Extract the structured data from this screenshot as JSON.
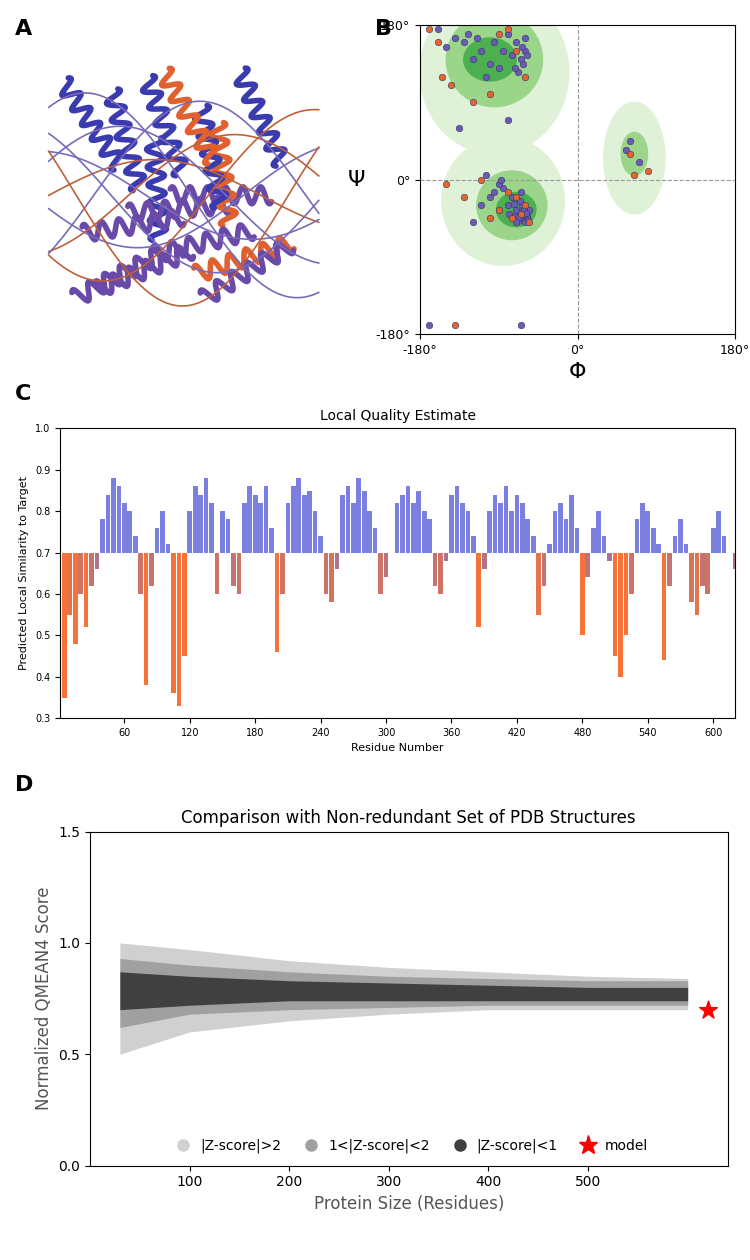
{
  "chart_data": [
    {
      "type": "image",
      "panel": "A"
    },
    {
      "type": "scatter",
      "panel": "B",
      "xlabel": "Φ",
      "ylabel": "Ψ",
      "xlim": [
        -180,
        180
      ],
      "ylim": [
        -180,
        180
      ],
      "xticks": [
        {
          "value": -180,
          "label": "-180°"
        },
        {
          "value": 0,
          "label": "0°"
        },
        {
          "value": 180,
          "label": "180°"
        }
      ],
      "yticks": [
        {
          "value": -180,
          "label": "-180°"
        },
        {
          "value": 0,
          "label": "0°"
        },
        {
          "value": 180,
          "label": "180°"
        }
      ],
      "series": [
        {
          "color": "#6b5bb5",
          "marker": "circle",
          "x": [
            -60,
            -65,
            -70,
            -62,
            -75,
            -80,
            -90,
            -100,
            -110,
            -120,
            -130,
            -140,
            -150,
            -68,
            -58,
            -72,
            -85,
            -95,
            -105,
            -115,
            -64,
            -60,
            -125,
            -160,
            -60,
            -62,
            -65,
            -58,
            -70,
            -68,
            -55,
            -72,
            -63,
            -66,
            -75,
            -80,
            -85,
            -90,
            -95,
            -100,
            -60,
            -57,
            -64,
            -67,
            -61,
            -59,
            -70,
            -78,
            -88,
            -110,
            -120,
            -105,
            -65,
            -73,
            -170,
            -65,
            60,
            70,
            55,
            -135,
            -80
          ],
          "y": [
            150,
            140,
            160,
            135,
            145,
            170,
            130,
            135,
            150,
            140,
            160,
            165,
            155,
            125,
            145,
            130,
            150,
            160,
            120,
            165,
            155,
            165,
            170,
            175,
            -40,
            -45,
            -38,
            -42,
            -35,
            -48,
            -35,
            -42,
            -30,
            -25,
            -20,
            -30,
            -10,
            -5,
            -15,
            -20,
            -50,
            -47,
            -41,
            -44,
            -36,
            -39,
            -50,
            -40,
            0,
            -30,
            -50,
            5,
            -15,
            -28,
            -170,
            -170,
            45,
            20,
            35,
            60,
            70
          ]
        },
        {
          "color": "#e8642a",
          "marker": "circle",
          "x": [
            -160,
            -155,
            -145,
            -90,
            -70,
            -60,
            -100,
            -120,
            -65,
            -60,
            -70,
            -75,
            -80,
            -90,
            -100,
            -55,
            -110,
            -130,
            80,
            60,
            65,
            -150,
            -140,
            -80,
            -170
          ],
          "y": [
            160,
            120,
            110,
            170,
            150,
            120,
            100,
            90,
            -40,
            -30,
            -20,
            -45,
            -15,
            -35,
            -45,
            -50,
            0,
            -20,
            10,
            30,
            5,
            -5,
            -170,
            175,
            175
          ]
        }
      ]
    },
    {
      "type": "bar",
      "panel": "C",
      "title": "Local Quality Estimate",
      "xlabel": "Residue Number",
      "ylabel": "Predicted Local Similarity to Target",
      "xlim": [
        1,
        620
      ],
      "ylim": [
        0.3,
        1.0
      ],
      "xticks": [
        60,
        120,
        180,
        240,
        300,
        360,
        420,
        480,
        540,
        600
      ],
      "yticks": [
        {
          "value": 0.3,
          "label": "0.3"
        },
        {
          "value": 0.4,
          "label": "0.4"
        },
        {
          "value": 0.5,
          "label": "0.5"
        },
        {
          "value": 0.6,
          "label": "0.6"
        },
        {
          "value": 0.7,
          "label": "0.7"
        },
        {
          "value": 0.8,
          "label": "0.8"
        },
        {
          "value": 0.9,
          "label": "0.9"
        },
        {
          "value": 1.0,
          "label": "1.0"
        }
      ],
      "baseline": 0.7,
      "x": [
        5,
        10,
        15,
        20,
        25,
        30,
        35,
        40,
        45,
        50,
        55,
        60,
        65,
        70,
        75,
        80,
        85,
        90,
        95,
        100,
        105,
        110,
        115,
        120,
        125,
        130,
        135,
        140,
        145,
        150,
        155,
        160,
        165,
        170,
        175,
        180,
        185,
        190,
        195,
        200,
        205,
        210,
        215,
        220,
        225,
        230,
        235,
        240,
        245,
        250,
        255,
        260,
        265,
        270,
        275,
        280,
        285,
        290,
        295,
        300,
        305,
        310,
        315,
        320,
        325,
        330,
        335,
        340,
        345,
        350,
        355,
        360,
        365,
        370,
        375,
        380,
        385,
        390,
        395,
        400,
        405,
        410,
        415,
        420,
        425,
        430,
        435,
        440,
        445,
        450,
        455,
        460,
        465,
        470,
        475,
        480,
        485,
        490,
        495,
        500,
        505,
        510,
        515,
        520,
        525,
        530,
        535,
        540,
        545,
        550,
        555,
        560,
        565,
        570,
        575,
        580,
        585,
        590,
        595,
        600,
        605,
        610,
        615,
        620
      ],
      "values": [
        0.35,
        0.55,
        0.48,
        0.6,
        0.52,
        0.62,
        0.66,
        0.78,
        0.84,
        0.88,
        0.86,
        0.82,
        0.8,
        0.74,
        0.6,
        0.38,
        0.62,
        0.76,
        0.8,
        0.72,
        0.36,
        0.33,
        0.45,
        0.8,
        0.86,
        0.84,
        0.88,
        0.82,
        0.6,
        0.8,
        0.78,
        0.62,
        0.6,
        0.82,
        0.86,
        0.84,
        0.82,
        0.86,
        0.76,
        0.46,
        0.6,
        0.82,
        0.86,
        0.88,
        0.84,
        0.85,
        0.8,
        0.74,
        0.6,
        0.58,
        0.66,
        0.84,
        0.86,
        0.82,
        0.88,
        0.85,
        0.8,
        0.76,
        0.6,
        0.64,
        0.7,
        0.82,
        0.84,
        0.86,
        0.82,
        0.85,
        0.8,
        0.78,
        0.62,
        0.6,
        0.68,
        0.84,
        0.86,
        0.82,
        0.8,
        0.74,
        0.52,
        0.66,
        0.8,
        0.84,
        0.82,
        0.86,
        0.8,
        0.84,
        0.82,
        0.78,
        0.74,
        0.55,
        0.62,
        0.72,
        0.8,
        0.82,
        0.78,
        0.84,
        0.76,
        0.5,
        0.64,
        0.76,
        0.8,
        0.74,
        0.68,
        0.45,
        0.4,
        0.5,
        0.6,
        0.78,
        0.82,
        0.8,
        0.76,
        0.72,
        0.44,
        0.62,
        0.74,
        0.78,
        0.72,
        0.58,
        0.55,
        0.62,
        0.6,
        0.76,
        0.8,
        0.74,
        0.7,
        0.66
      ]
    },
    {
      "type": "band_scatter",
      "panel": "D",
      "title": "Comparison with Non-redundant Set of PDB Structures",
      "xlabel": "Protein Size (Residues)",
      "ylabel": "Normalized QMEAN4 Score",
      "xlim": [
        0,
        640
      ],
      "ylim": [
        0.0,
        1.5
      ],
      "xticks": [
        100,
        200,
        300,
        400,
        500
      ],
      "yticks": [
        {
          "value": 0.0,
          "label": "0.0"
        },
        {
          "value": 0.5,
          "label": "0.5"
        },
        {
          "value": 1.0,
          "label": "1.0"
        },
        {
          "value": 1.5,
          "label": "1.5"
        }
      ],
      "legend": "lower center",
      "series": [
        {
          "name": "|Z-score|>2",
          "color": "#d0d0d0",
          "marker": "circle",
          "x": [
            30,
            100,
            200,
            300,
            400,
            500,
            600
          ],
          "lower": [
            0.5,
            0.6,
            0.65,
            0.68,
            0.7,
            0.7,
            0.7
          ],
          "upper": [
            1.0,
            0.97,
            0.92,
            0.89,
            0.87,
            0.85,
            0.84
          ]
        },
        {
          "name": "1<|Z-score|<2",
          "color": "#a0a0a0",
          "marker": "circle",
          "x": [
            30,
            100,
            200,
            300,
            400,
            500,
            600
          ],
          "lower": [
            0.62,
            0.68,
            0.7,
            0.71,
            0.72,
            0.72,
            0.72
          ],
          "upper": [
            0.93,
            0.9,
            0.87,
            0.85,
            0.84,
            0.83,
            0.83
          ]
        },
        {
          "name": "|Z-score|<1",
          "color": "#404040",
          "marker": "circle",
          "x": [
            30,
            100,
            200,
            300,
            400,
            500,
            600
          ],
          "lower": [
            0.7,
            0.72,
            0.74,
            0.74,
            0.74,
            0.74,
            0.74
          ],
          "upper": [
            0.87,
            0.85,
            0.83,
            0.82,
            0.81,
            0.8,
            0.8
          ]
        },
        {
          "name": "model",
          "color": "#ff0000",
          "marker": "star",
          "x": [
            620
          ],
          "y": [
            0.7
          ]
        }
      ]
    }
  ]
}
